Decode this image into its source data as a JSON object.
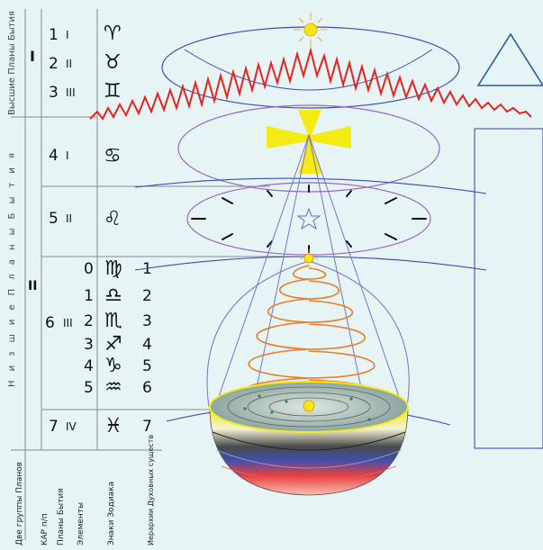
{
  "left_labels": {
    "higher_planes": "Высшие Планы Бытия",
    "lower_planes": "Н и з ш и е   П л а н ы   Б ы т и я",
    "group_I": "I",
    "group_II": "II"
  },
  "rows": [
    {
      "num": "1",
      "roman": "I",
      "sign": "♈"
    },
    {
      "num": "2",
      "roman": "II",
      "sign": "♉"
    },
    {
      "num": "3",
      "roman": "III",
      "sign": "♊"
    },
    {
      "num": "4",
      "roman": "I",
      "sign": "♋"
    },
    {
      "num": "5",
      "roman": "II",
      "sign": "♌"
    },
    {
      "num": "6",
      "roman": "III",
      "sign": ""
    },
    {
      "num": "7",
      "roman": "IV",
      "sign": "♓"
    }
  ],
  "sub_rows": [
    {
      "left": "0",
      "sign": "♍",
      "right": "1"
    },
    {
      "left": "1",
      "sign": "♎",
      "right": "2"
    },
    {
      "left": "2",
      "sign": "♏",
      "right": "3"
    },
    {
      "left": "3",
      "sign": "♐",
      "right": "4"
    },
    {
      "left": "4",
      "sign": "♑",
      "right": "5"
    },
    {
      "left": "5",
      "sign": "♒",
      "right": "6"
    },
    {
      "left": "",
      "sign": "♓",
      "right": "7"
    }
  ],
  "bottom_axis_labels": [
    "Две группы Планов",
    "КАР п/п",
    "Планы Бытия",
    "Элементы",
    "Знаки Зодиака",
    "Иерархии Духовных существ"
  ],
  "colors": {
    "background": "#e6f4f6",
    "zigzag": "#e52420",
    "cone": "#6f75c8",
    "spiral": "#ee7b25",
    "cross": "#f6ea14",
    "sun": "#f7e51b"
  }
}
